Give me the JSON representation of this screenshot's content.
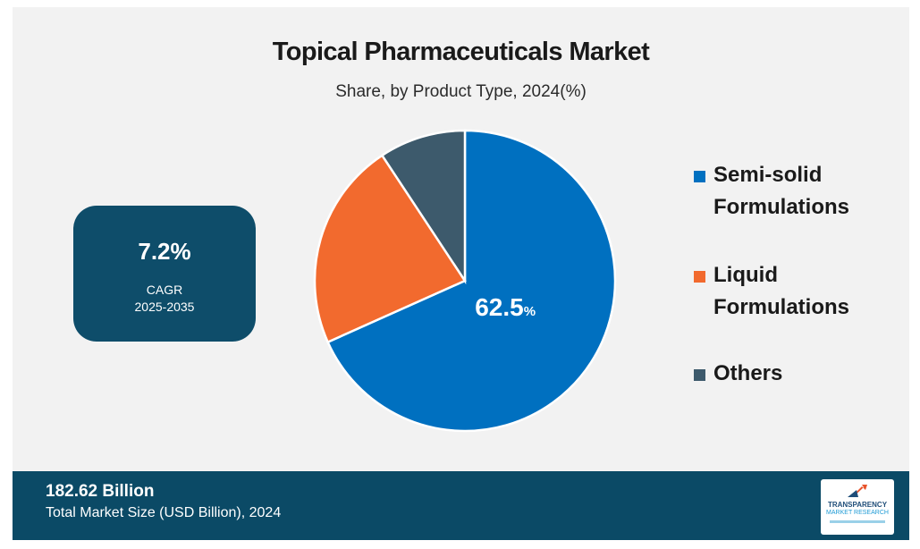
{
  "title": "Topical Pharmaceuticals Market",
  "subtitle": "Share, by Product Type, 2024(%)",
  "cagr": {
    "value": "7.2%",
    "label": "CAGR",
    "period": "2025-2035"
  },
  "chart_data": {
    "type": "pie",
    "title": "Topical Pharmaceuticals Market",
    "subtitle": "Share, by Product Type, 2024(%)",
    "slices": [
      {
        "label": "Semi-solid Formulations",
        "value": 62.5,
        "color": "#0070c0",
        "data_label": "62.5"
      },
      {
        "label": "Liquid Formulations",
        "value": 20.5,
        "color": "#f26a2e"
      },
      {
        "label": "Others",
        "value": 8.5,
        "color": "#3d5a6c"
      }
    ],
    "data_label_unit": "%",
    "legend_position": "right"
  },
  "legend": [
    {
      "line1": "Semi-solid",
      "line2": "Formulations"
    },
    {
      "line1": "Liquid",
      "line2": "Formulations"
    },
    {
      "line1": "Others",
      "line2": ""
    }
  ],
  "footer": {
    "value": "182.62 Billion",
    "label": "Total Market Size (USD Billion), 2024"
  },
  "logo": {
    "line1": "TRANSPARENCY",
    "line2": "MARKET RESEARCH"
  },
  "colors": {
    "cagr_box": "#0e4d6a",
    "footer_bar": "#0b4a66",
    "background": "#f2f2f2"
  }
}
